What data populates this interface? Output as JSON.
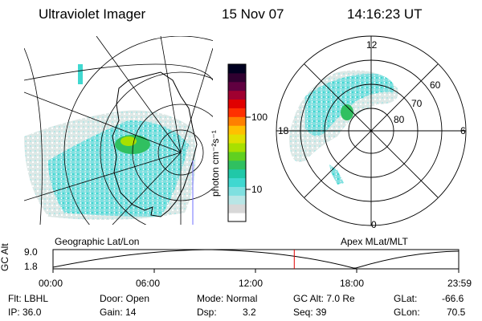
{
  "header": {
    "instrument": "Ultraviolet Imager",
    "date": "15 Nov 07",
    "time": "14:16:23 UT"
  },
  "colorbar": {
    "unit_label": "photon cm⁻²s⁻¹",
    "ticks": [
      "100",
      "10"
    ],
    "colors": [
      "#ffffff",
      "#d8d8d8",
      "#b8e6e6",
      "#7fe0e0",
      "#40d8d0",
      "#20c8a8",
      "#30c060",
      "#60d020",
      "#a8e000",
      "#e0e000",
      "#ffc000",
      "#ff8000",
      "#ff3000",
      "#e00000",
      "#a00030",
      "#600040",
      "#300030",
      "#000020"
    ]
  },
  "left_map": {
    "label": "Geographic Lat/Lon"
  },
  "right_map": {
    "label": "Apex MLat/MLT",
    "mlt_labels": {
      "top": "12",
      "bottom": "0",
      "left": "18",
      "right": "6"
    },
    "lat_labels": [
      "60",
      "70",
      "80"
    ]
  },
  "altitude_plot": {
    "ylabel": "GC Alt",
    "yticks": [
      "9.0",
      "1.8"
    ],
    "xticks": [
      "00:00",
      "06:00",
      "12:00",
      "18:00",
      "23:59"
    ],
    "current_time_fraction": 0.5947
  },
  "info": {
    "filter": "Flt: LBHL",
    "ip": "IP: 36.0",
    "door": "Door: Open",
    "gain": "Gain: 14",
    "mode": "Mode: Normal",
    "dsp_label": "Dsp:",
    "dsp_value": "3.2",
    "gc_alt": "GC Alt: 7.0 Re",
    "seq": "Seq: 39",
    "glat_label": "GLat:",
    "glat_value": "-66.6",
    "glon_label": "GLon:",
    "glon_value": "70.5"
  }
}
